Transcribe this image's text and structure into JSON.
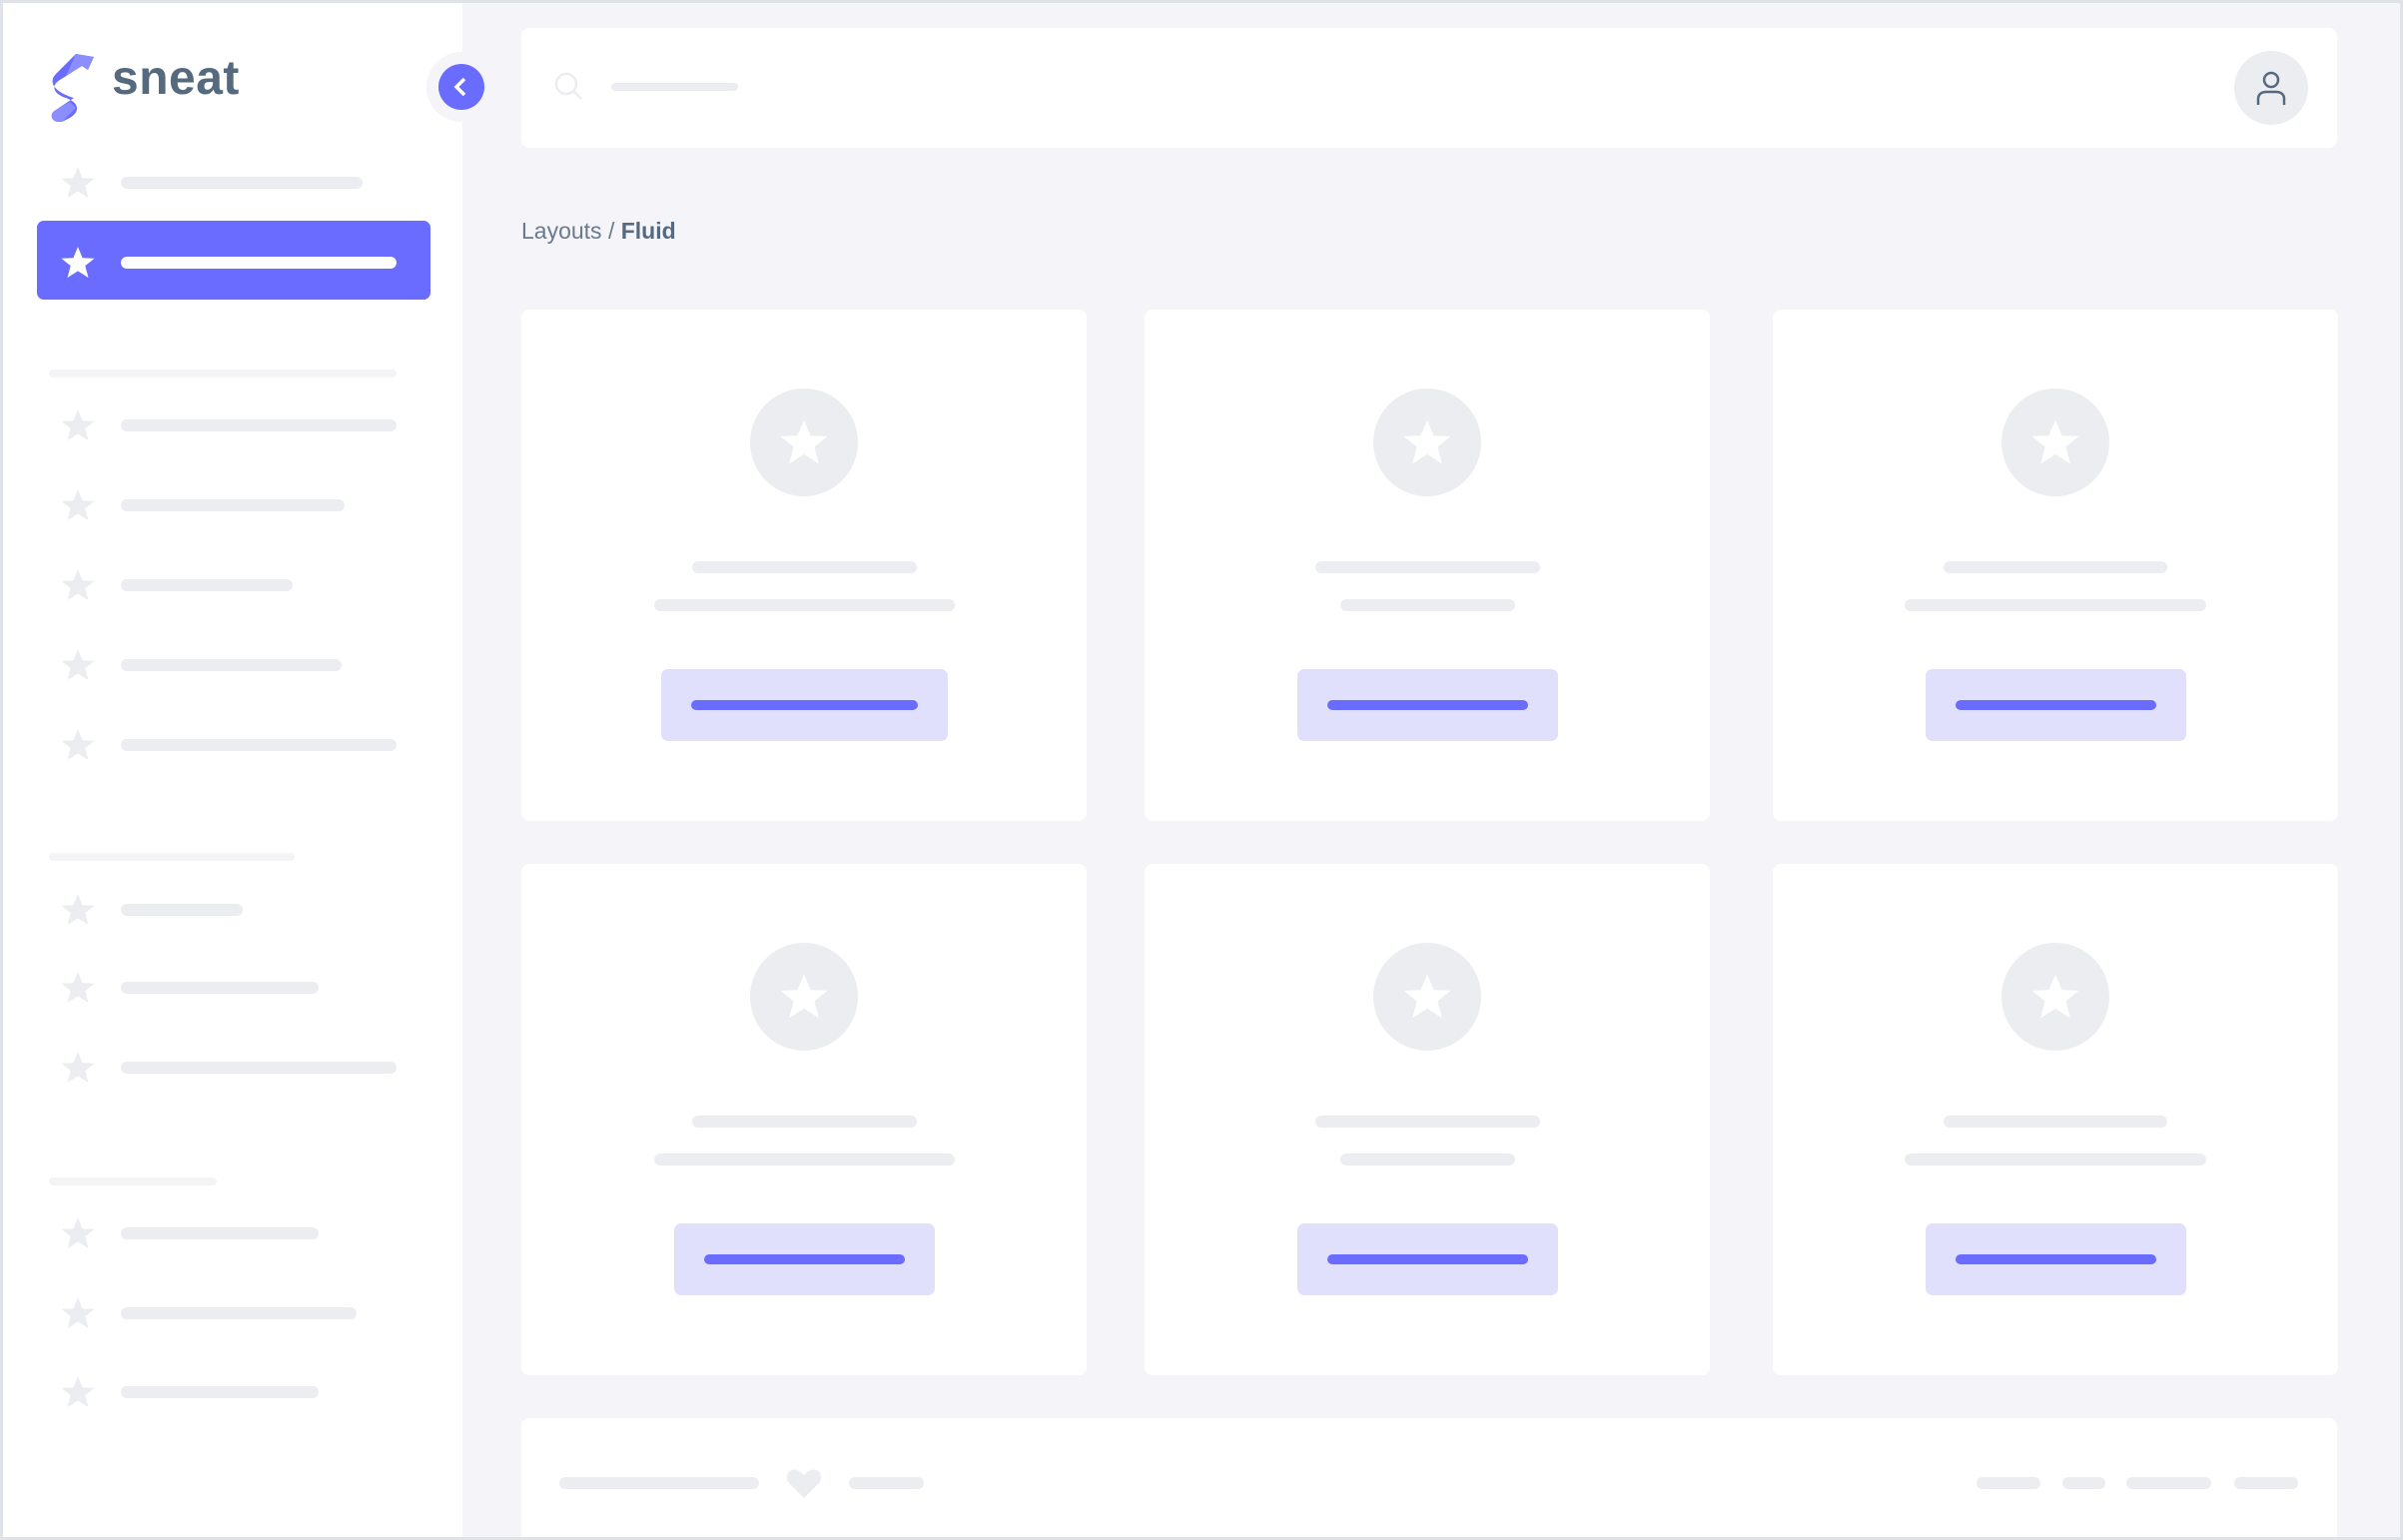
{
  "brand": {
    "name": "sneat",
    "accent": "#696cff",
    "text_color": "#566a7f"
  },
  "breadcrumb": {
    "parent": "Layouts",
    "separator": " / ",
    "current": "Fluid"
  },
  "icons": {
    "logo": "sneat-logo",
    "collapse": "chevron-left-icon",
    "search": "search-icon",
    "user": "user-icon",
    "menu": "star-icon",
    "card": "star-icon",
    "footer": "heart-icon"
  }
}
